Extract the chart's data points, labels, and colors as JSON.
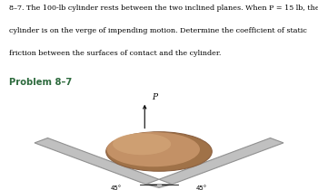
{
  "title_line1": "8–7. The 100-lb cylinder rests between the two inclined planes. When P = 15 lb, the",
  "title_line2": "cylinder is on the verge of impending motion. Determine the coefficient of static",
  "title_line3": "friction between the surfaces of contact and the cylinder.",
  "problem_label": "Problem 8–7",
  "angle_label_left": "45°",
  "angle_label_right": "45°",
  "force_label": "P",
  "cylinder_color": "#C8956A",
  "cylinder_highlight": "#D4A87A",
  "cylinder_dark": "#A07248",
  "cylinder_edge": "#8B6040",
  "wedge_color": "#C0C0C0",
  "wedge_edge_color": "#909090",
  "background_color": "#ffffff",
  "title_color": "#000000",
  "problem_label_color": "#2E6B3E",
  "fig_width": 3.5,
  "fig_height": 2.1,
  "dpi": 100
}
